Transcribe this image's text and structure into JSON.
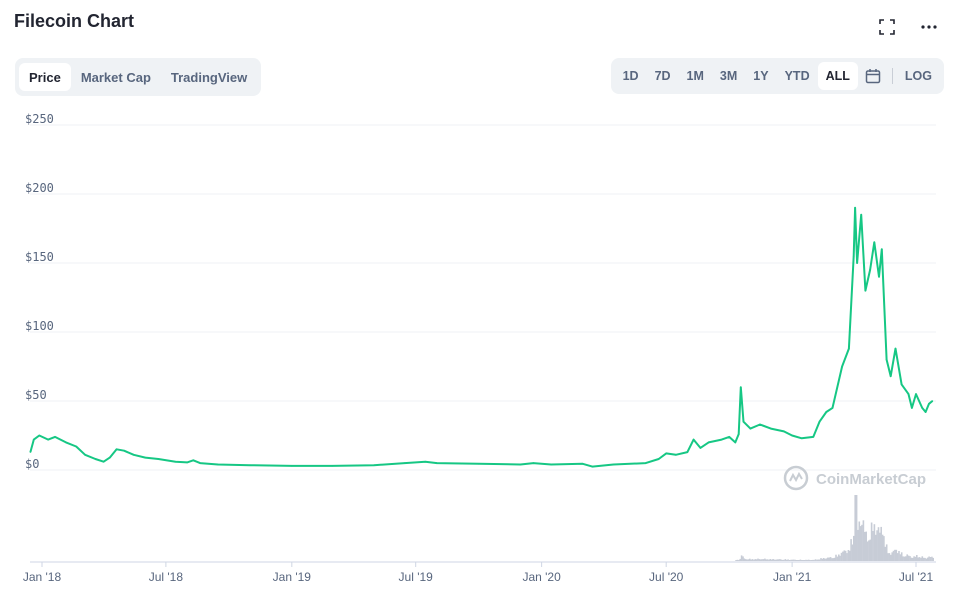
{
  "header": {
    "title": "Filecoin Chart"
  },
  "tabs": [
    {
      "label": "Price",
      "active": true
    },
    {
      "label": "Market Cap",
      "active": false
    },
    {
      "label": "TradingView",
      "active": false
    }
  ],
  "ranges": [
    {
      "label": "1D",
      "active": false
    },
    {
      "label": "7D",
      "active": false
    },
    {
      "label": "1M",
      "active": false
    },
    {
      "label": "3M",
      "active": false
    },
    {
      "label": "1Y",
      "active": false
    },
    {
      "label": "YTD",
      "active": false
    },
    {
      "label": "ALL",
      "active": true
    }
  ],
  "scale_toggle": "LOG",
  "icons": {
    "fullscreen": "fullscreen-icon",
    "more": "more-icon",
    "calendar": "calendar-icon"
  },
  "watermark": "CoinMarketCap",
  "colors": {
    "line": "#16c784",
    "volume": "#c7ccd6",
    "grid": "#eff2f5",
    "text": "#58667e"
  },
  "chart_data": {
    "type": "line",
    "title": "Filecoin Chart",
    "xlabel": "",
    "ylabel": "",
    "ylim": [
      0,
      250
    ],
    "yticks": [
      "$0",
      "$50",
      "$100",
      "$150",
      "$200",
      "$250"
    ],
    "ytick_values": [
      0,
      50,
      100,
      150,
      200,
      250
    ],
    "xticks": [
      "Jan '18",
      "Jul '18",
      "Jan '19",
      "Jul '19",
      "Jan '20",
      "Jul '20",
      "Jan '21",
      "Jul '21"
    ],
    "xtick_dates": [
      "2018-01-01",
      "2018-07-01",
      "2019-01-01",
      "2019-07-01",
      "2020-01-01",
      "2020-07-01",
      "2021-01-01",
      "2021-07-01"
    ],
    "grid": true,
    "series": [
      {
        "points": [
          [
            "2017-12-15",
            13
          ],
          [
            "2017-12-20",
            22
          ],
          [
            "2017-12-28",
            25
          ],
          [
            "2018-01-10",
            22
          ],
          [
            "2018-01-20",
            24
          ],
          [
            "2018-02-05",
            20
          ],
          [
            "2018-02-20",
            17
          ],
          [
            "2018-03-05",
            11
          ],
          [
            "2018-03-20",
            8
          ],
          [
            "2018-04-01",
            6
          ],
          [
            "2018-04-10",
            9
          ],
          [
            "2018-04-20",
            15
          ],
          [
            "2018-05-01",
            14
          ],
          [
            "2018-05-15",
            11
          ],
          [
            "2018-06-01",
            9
          ],
          [
            "2018-06-20",
            8
          ],
          [
            "2018-07-15",
            6
          ],
          [
            "2018-08-01",
            5.5
          ],
          [
            "2018-08-10",
            7
          ],
          [
            "2018-08-20",
            5
          ],
          [
            "2018-09-15",
            4
          ],
          [
            "2018-11-01",
            3.5
          ],
          [
            "2019-01-01",
            3
          ],
          [
            "2019-03-01",
            3
          ],
          [
            "2019-05-01",
            3.5
          ],
          [
            "2019-06-15",
            5
          ],
          [
            "2019-07-15",
            6
          ],
          [
            "2019-08-01",
            5
          ],
          [
            "2019-10-01",
            4.5
          ],
          [
            "2019-12-01",
            4
          ],
          [
            "2019-12-20",
            5
          ],
          [
            "2020-01-15",
            4
          ],
          [
            "2020-03-01",
            4.5
          ],
          [
            "2020-03-15",
            2.5
          ],
          [
            "2020-04-15",
            4
          ],
          [
            "2020-06-01",
            5
          ],
          [
            "2020-06-20",
            8
          ],
          [
            "2020-07-01",
            12
          ],
          [
            "2020-07-15",
            11
          ],
          [
            "2020-08-01",
            13
          ],
          [
            "2020-08-10",
            22
          ],
          [
            "2020-08-20",
            16
          ],
          [
            "2020-09-01",
            20
          ],
          [
            "2020-09-20",
            22
          ],
          [
            "2020-10-01",
            24
          ],
          [
            "2020-10-10",
            20
          ],
          [
            "2020-10-15",
            26
          ],
          [
            "2020-10-18",
            60
          ],
          [
            "2020-10-22",
            35
          ],
          [
            "2020-11-01",
            30
          ],
          [
            "2020-11-15",
            33
          ],
          [
            "2020-12-01",
            30
          ],
          [
            "2020-12-20",
            28
          ],
          [
            "2021-01-01",
            25
          ],
          [
            "2021-01-15",
            23
          ],
          [
            "2021-02-01",
            24
          ],
          [
            "2021-02-10",
            35
          ],
          [
            "2021-02-20",
            42
          ],
          [
            "2021-03-01",
            45
          ],
          [
            "2021-03-15",
            75
          ],
          [
            "2021-03-25",
            88
          ],
          [
            "2021-04-01",
            155
          ],
          [
            "2021-04-03",
            190
          ],
          [
            "2021-04-06",
            150
          ],
          [
            "2021-04-12",
            185
          ],
          [
            "2021-04-18",
            130
          ],
          [
            "2021-04-25",
            145
          ],
          [
            "2021-05-01",
            165
          ],
          [
            "2021-05-08",
            140
          ],
          [
            "2021-05-12",
            160
          ],
          [
            "2021-05-19",
            80
          ],
          [
            "2021-05-25",
            68
          ],
          [
            "2021-06-01",
            88
          ],
          [
            "2021-06-10",
            62
          ],
          [
            "2021-06-20",
            55
          ],
          [
            "2021-06-25",
            45
          ],
          [
            "2021-07-01",
            55
          ],
          [
            "2021-07-10",
            45
          ],
          [
            "2021-07-15",
            42
          ],
          [
            "2021-07-20",
            48
          ],
          [
            "2021-07-25",
            50
          ]
        ]
      }
    ]
  }
}
